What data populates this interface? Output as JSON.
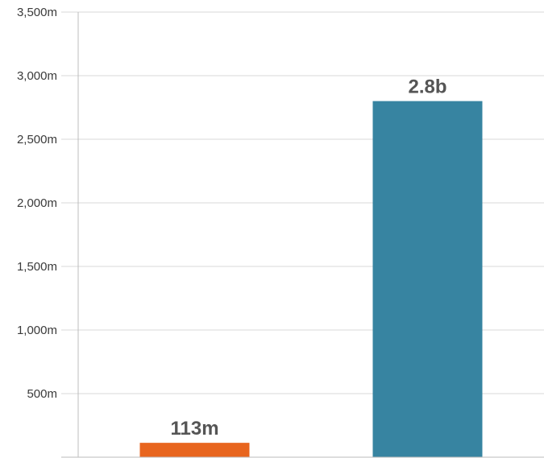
{
  "chart_data": {
    "type": "bar",
    "title": "",
    "xlabel": "",
    "ylabel": "",
    "ylim": [
      0,
      3500
    ],
    "y_ticks": [
      {
        "value": 500,
        "label": "500m"
      },
      {
        "value": 1000,
        "label": "1,000m"
      },
      {
        "value": 1500,
        "label": "1,500m"
      },
      {
        "value": 2000,
        "label": "2,000m"
      },
      {
        "value": 2500,
        "label": "2,500m"
      },
      {
        "value": 3000,
        "label": "3,000m"
      },
      {
        "value": 3500,
        "label": "3,500m"
      }
    ],
    "grid": true,
    "legend": "none",
    "bars": [
      {
        "value": 113,
        "label": "113m",
        "color": "#e8651e"
      },
      {
        "value": 2800,
        "label": "2.8b",
        "color": "#3784a1"
      }
    ]
  }
}
